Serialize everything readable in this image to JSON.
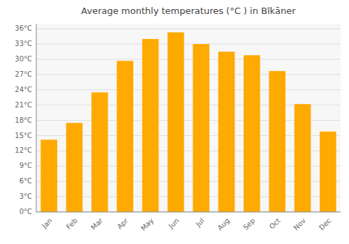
{
  "chart_data": {
    "type": "bar",
    "title": "Average monthly temperatures (°C ) in Bīkāner",
    "categories": [
      "Jan",
      "Feb",
      "Mar",
      "Apr",
      "May",
      "Jun",
      "Jul",
      "Aug",
      "Sep",
      "Oct",
      "Nov",
      "Dec"
    ],
    "values": [
      14.2,
      17.5,
      23.5,
      29.7,
      34.0,
      35.3,
      33.0,
      31.5,
      30.8,
      27.7,
      21.2,
      15.8
    ],
    "color": "#FFAA00",
    "ylim": [
      0,
      37
    ],
    "yticks": [
      {
        "value": 0,
        "label": "0°C"
      },
      {
        "value": 3,
        "label": "3°C"
      },
      {
        "value": 6,
        "label": "6°C"
      },
      {
        "value": 9,
        "label": "9°C"
      },
      {
        "value": 12,
        "label": "12°C"
      },
      {
        "value": 15,
        "label": "15°C"
      },
      {
        "value": 18,
        "label": "18°C"
      },
      {
        "value": 21,
        "label": "21°C"
      },
      {
        "value": 24,
        "label": "24°C"
      },
      {
        "value": 27,
        "label": "27°C"
      },
      {
        "value": 30,
        "label": "30°C"
      },
      {
        "value": 33,
        "label": "33°C"
      },
      {
        "value": 36,
        "label": "36°C"
      }
    ],
    "grid": true
  }
}
